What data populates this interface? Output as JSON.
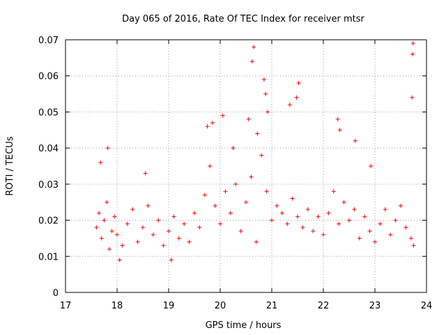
{
  "chart_data": {
    "type": "scatter",
    "title": "Day 065 of 2016, Rate Of TEC Index for receiver mtsr",
    "xlabel": "GPS time / hours",
    "ylabel": "ROTI / TECUs",
    "xlim": [
      17,
      24
    ],
    "ylim": [
      0,
      0.07
    ],
    "xticks": [
      "17",
      "18",
      "19",
      "20",
      "21",
      "22",
      "23",
      "24"
    ],
    "yticks": [
      "0",
      "0.01",
      "0.02",
      "0.03",
      "0.04",
      "0.05",
      "0.06",
      "0.07"
    ],
    "grid": true,
    "marker": "+",
    "series": [
      {
        "name": "ROTI",
        "color": "#ff0000",
        "x": [
          17.6,
          17.65,
          17.7,
          17.75,
          17.8,
          17.85,
          17.9,
          17.95,
          18.0,
          18.1,
          18.2,
          18.3,
          18.4,
          18.5,
          18.6,
          18.7,
          18.8,
          18.9,
          19.0,
          19.1,
          19.2,
          19.3,
          19.4,
          19.5,
          19.6,
          19.7,
          19.8,
          19.9,
          20.0,
          20.1,
          20.2,
          20.3,
          20.4,
          20.5,
          20.6,
          20.7,
          20.8,
          20.9,
          21.0,
          21.1,
          21.2,
          21.3,
          21.4,
          21.5,
          21.6,
          21.7,
          21.8,
          21.9,
          22.0,
          22.1,
          22.2,
          22.3,
          22.4,
          22.5,
          22.6,
          22.7,
          22.8,
          22.9,
          23.0,
          23.1,
          23.2,
          23.3,
          23.4,
          23.5,
          23.6,
          23.7,
          23.75,
          17.68,
          17.82,
          18.05,
          18.55,
          19.05,
          19.75,
          19.85,
          20.05,
          20.25,
          20.55,
          20.62,
          20.65,
          20.72,
          20.85,
          20.88,
          20.92,
          21.35,
          21.48,
          21.52,
          22.28,
          22.32,
          22.62,
          22.92,
          23.72,
          23.74,
          23.73
        ],
        "y": [
          0.018,
          0.022,
          0.015,
          0.02,
          0.025,
          0.012,
          0.017,
          0.021,
          0.016,
          0.013,
          0.019,
          0.023,
          0.014,
          0.018,
          0.024,
          0.016,
          0.02,
          0.013,
          0.017,
          0.021,
          0.015,
          0.019,
          0.014,
          0.022,
          0.018,
          0.027,
          0.035,
          0.024,
          0.019,
          0.028,
          0.022,
          0.03,
          0.017,
          0.025,
          0.032,
          0.014,
          0.038,
          0.028,
          0.02,
          0.024,
          0.022,
          0.019,
          0.026,
          0.021,
          0.018,
          0.023,
          0.017,
          0.021,
          0.016,
          0.022,
          0.028,
          0.019,
          0.025,
          0.02,
          0.023,
          0.015,
          0.021,
          0.017,
          0.014,
          0.019,
          0.023,
          0.016,
          0.02,
          0.024,
          0.018,
          0.015,
          0.013,
          0.036,
          0.04,
          0.009,
          0.033,
          0.009,
          0.046,
          0.047,
          0.049,
          0.04,
          0.048,
          0.064,
          0.068,
          0.044,
          0.059,
          0.055,
          0.05,
          0.052,
          0.054,
          0.058,
          0.048,
          0.045,
          0.042,
          0.035,
          0.054,
          0.069,
          0.066
        ]
      }
    ]
  }
}
